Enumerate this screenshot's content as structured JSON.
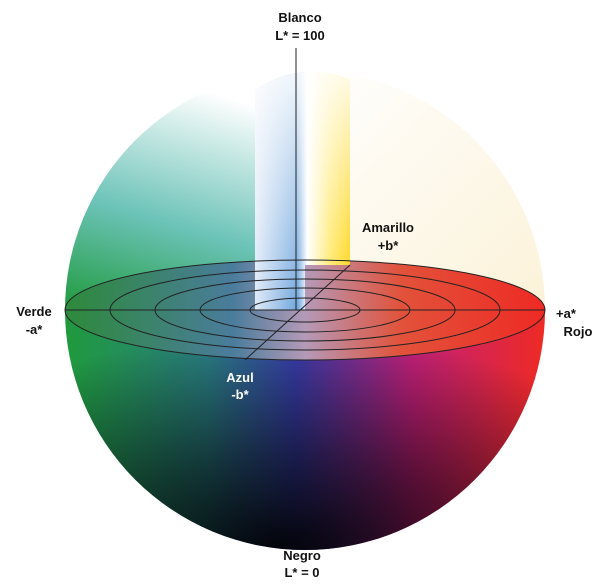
{
  "labels": {
    "white": {
      "name": "Blanco",
      "value": "L* = 100"
    },
    "yellow": {
      "name": "Amarillo",
      "value": "+b*"
    },
    "green": {
      "name": "Verde",
      "value": "-a*"
    },
    "red": {
      "name": "Rojo",
      "value": "+a*"
    },
    "blue": {
      "name": "Azul",
      "value": "-b*"
    },
    "black": {
      "name": "Negro",
      "value": "L* = 0"
    }
  }
}
